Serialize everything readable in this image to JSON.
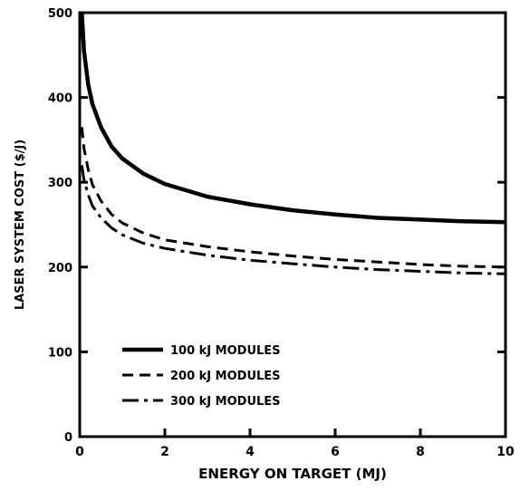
{
  "chart_data": {
    "type": "line",
    "title": "",
    "xlabel": "ENERGY ON TARGET (MJ)",
    "ylabel": "LASER SYSTEM COST ($/J)",
    "xlim": [
      0,
      10
    ],
    "ylim": [
      0,
      500
    ],
    "x_ticks": [
      0,
      2,
      4,
      6,
      8,
      10
    ],
    "y_ticks": [
      0,
      100,
      200,
      300,
      400,
      500
    ],
    "x_tick_labels": [
      "0",
      "2",
      "4",
      "6",
      "8",
      "10"
    ],
    "y_tick_labels": [
      "0",
      "100",
      "200",
      "300",
      "400",
      "500"
    ],
    "grid": false,
    "legend_position": "bottom-left",
    "series": [
      {
        "name": "100 kJ MODULES",
        "style": "solid",
        "points": [
          [
            0.05,
            500
          ],
          [
            0.1,
            455
          ],
          [
            0.2,
            415
          ],
          [
            0.3,
            392
          ],
          [
            0.5,
            365
          ],
          [
            0.75,
            342
          ],
          [
            1,
            328
          ],
          [
            1.5,
            310
          ],
          [
            2,
            298
          ],
          [
            3,
            283
          ],
          [
            4,
            274
          ],
          [
            5,
            267
          ],
          [
            6,
            262
          ],
          [
            7,
            258
          ],
          [
            8,
            256
          ],
          [
            9,
            254
          ],
          [
            10,
            253
          ]
        ]
      },
      {
        "name": "200 kJ MODULES",
        "style": "dashed",
        "points": [
          [
            0.05,
            365
          ],
          [
            0.1,
            340
          ],
          [
            0.2,
            315
          ],
          [
            0.3,
            297
          ],
          [
            0.5,
            278
          ],
          [
            0.75,
            262
          ],
          [
            1,
            252
          ],
          [
            1.5,
            240
          ],
          [
            2,
            232
          ],
          [
            3,
            224
          ],
          [
            4,
            218
          ],
          [
            5,
            213
          ],
          [
            6,
            209
          ],
          [
            7,
            206
          ],
          [
            8,
            203
          ],
          [
            9,
            201
          ],
          [
            10,
            200
          ]
        ]
      },
      {
        "name": "300 kJ MODULES",
        "style": "dash-dot",
        "points": [
          [
            0.05,
            320
          ],
          [
            0.1,
            303
          ],
          [
            0.2,
            285
          ],
          [
            0.3,
            272
          ],
          [
            0.5,
            258
          ],
          [
            0.75,
            246
          ],
          [
            1,
            238
          ],
          [
            1.5,
            228
          ],
          [
            2,
            222
          ],
          [
            3,
            214
          ],
          [
            4,
            208
          ],
          [
            5,
            204
          ],
          [
            6,
            200
          ],
          [
            7,
            197
          ],
          [
            8,
            195
          ],
          [
            9,
            193
          ],
          [
            10,
            192
          ]
        ]
      }
    ]
  }
}
